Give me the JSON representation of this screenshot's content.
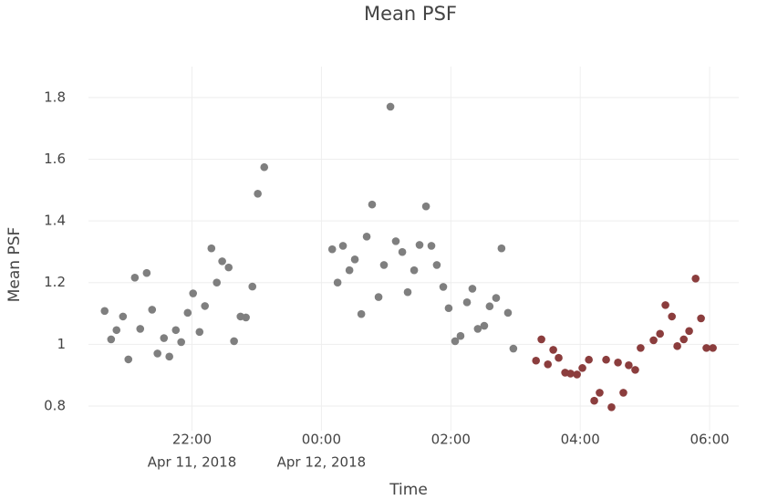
{
  "chart_data": {
    "type": "scatter",
    "title": "Mean PSF",
    "xlabel": "Time",
    "ylabel": "Mean PSF",
    "xlim": [
      "2018-04-11T20:24",
      "2018-04-12T06:27"
    ],
    "xticks": [
      {
        "value": "2018-04-11T22:00",
        "label": "22:00",
        "date": "Apr 11, 2018"
      },
      {
        "value": "2018-04-12T00:00",
        "label": "00:00",
        "date": "Apr 12, 2018"
      },
      {
        "value": "2018-04-12T02:00",
        "label": "02:00"
      },
      {
        "value": "2018-04-12T04:00",
        "label": "04:00"
      },
      {
        "value": "2018-04-12T06:00",
        "label": "06:00"
      }
    ],
    "ylim": [
      0.72,
      1.9
    ],
    "yticks": [
      0.8,
      1,
      1.2,
      1.4,
      1.6,
      1.8
    ],
    "grid": true,
    "series": [
      {
        "color": "#7f7f7f",
        "x": [
          "2018-04-11T20:39",
          "2018-04-11T20:45",
          "2018-04-11T20:50",
          "2018-04-11T20:56",
          "2018-04-11T21:01",
          "2018-04-11T21:07",
          "2018-04-11T21:12",
          "2018-04-11T21:18",
          "2018-04-11T21:23",
          "2018-04-11T21:28",
          "2018-04-11T21:34",
          "2018-04-11T21:39",
          "2018-04-11T21:45",
          "2018-04-11T21:50",
          "2018-04-11T21:56",
          "2018-04-11T22:01",
          "2018-04-11T22:07",
          "2018-04-11T22:12",
          "2018-04-11T22:18",
          "2018-04-11T22:23",
          "2018-04-11T22:28",
          "2018-04-11T22:34",
          "2018-04-11T22:39",
          "2018-04-11T22:45",
          "2018-04-11T22:50",
          "2018-04-11T22:56",
          "2018-04-11T23:01",
          "2018-04-11T23:07",
          "2018-04-12T00:10",
          "2018-04-12T00:15",
          "2018-04-12T00:20",
          "2018-04-12T00:26",
          "2018-04-12T00:31",
          "2018-04-12T00:37",
          "2018-04-12T00:42",
          "2018-04-12T00:47",
          "2018-04-12T00:53",
          "2018-04-12T00:58",
          "2018-04-12T01:04",
          "2018-04-12T01:09",
          "2018-04-12T01:15",
          "2018-04-12T01:20",
          "2018-04-12T01:26",
          "2018-04-12T01:31",
          "2018-04-12T01:37",
          "2018-04-12T01:42",
          "2018-04-12T01:47",
          "2018-04-12T01:53",
          "2018-04-12T01:58",
          "2018-04-12T02:04",
          "2018-04-12T02:09",
          "2018-04-12T02:15",
          "2018-04-12T02:20",
          "2018-04-12T02:25",
          "2018-04-12T02:31",
          "2018-04-12T02:36",
          "2018-04-12T02:42",
          "2018-04-12T02:47",
          "2018-04-12T02:53",
          "2018-04-12T02:58"
        ],
        "values": [
          1.108,
          1.016,
          1.046,
          1.09,
          0.951,
          1.216,
          1.05,
          1.231,
          1.112,
          0.97,
          1.02,
          0.96,
          1.046,
          1.007,
          1.102,
          1.165,
          1.04,
          1.124,
          1.311,
          1.2,
          1.269,
          1.249,
          1.01,
          1.09,
          1.087,
          1.187,
          1.488,
          1.574,
          1.308,
          1.2,
          1.319,
          1.24,
          1.275,
          1.098,
          1.349,
          1.453,
          1.153,
          1.257,
          1.77,
          1.334,
          1.299,
          1.169,
          1.24,
          1.322,
          1.447,
          1.319,
          1.257,
          1.186,
          1.117,
          1.01,
          1.027,
          1.136,
          1.18,
          1.05,
          1.06,
          1.123,
          1.15,
          1.311,
          1.102,
          0.986
        ]
      },
      {
        "color": "#8b3d3d",
        "x": [
          "2018-04-12T03:19",
          "2018-04-12T03:24",
          "2018-04-12T03:30",
          "2018-04-12T03:35",
          "2018-04-12T03:40",
          "2018-04-12T03:46",
          "2018-04-12T03:51",
          "2018-04-12T03:57",
          "2018-04-12T04:02",
          "2018-04-12T04:08",
          "2018-04-12T04:13",
          "2018-04-12T04:18",
          "2018-04-12T04:24",
          "2018-04-12T04:29",
          "2018-04-12T04:35",
          "2018-04-12T04:40",
          "2018-04-12T04:45",
          "2018-04-12T04:51",
          "2018-04-12T04:56",
          "2018-04-12T05:08",
          "2018-04-12T05:14",
          "2018-04-12T05:19",
          "2018-04-12T05:25",
          "2018-04-12T05:30",
          "2018-04-12T05:36",
          "2018-04-12T05:41",
          "2018-04-12T05:47",
          "2018-04-12T05:52",
          "2018-04-12T05:57",
          "2018-04-12T06:03"
        ],
        "values": [
          0.947,
          1.016,
          0.935,
          0.982,
          0.956,
          0.908,
          0.905,
          0.902,
          0.923,
          0.95,
          0.817,
          0.843,
          0.95,
          0.796,
          0.941,
          0.843,
          0.932,
          0.917,
          0.988,
          1.013,
          1.034,
          1.127,
          1.09,
          0.994,
          1.016,
          1.043,
          1.213,
          1.084,
          0.988,
          0.988
        ]
      }
    ]
  }
}
